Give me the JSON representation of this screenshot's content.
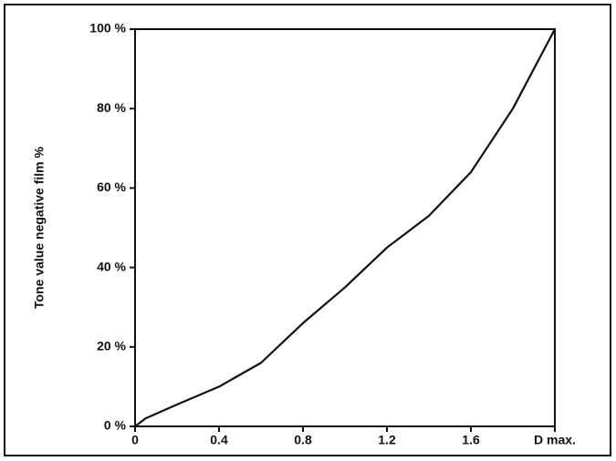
{
  "chart_data": {
    "type": "line",
    "y_label": "Tone value negative film %",
    "x": [
      0,
      0.05,
      0.2,
      0.4,
      0.6,
      0.8,
      1.0,
      1.2,
      1.4,
      1.6,
      1.8,
      2.0
    ],
    "series": [
      {
        "color": "#111111",
        "values": [
          0,
          2,
          5.5,
          10,
          16,
          26,
          35,
          45,
          53,
          64,
          80,
          100
        ]
      }
    ],
    "xlim": [
      0,
      2.0
    ],
    "xticks": [
      0,
      0.4,
      0.8,
      1.2,
      1.6,
      {
        "value": 2.0,
        "label": "D max."
      }
    ],
    "ylim": [
      0,
      100
    ],
    "yticks": [
      {
        "value": 0,
        "label": "0 %"
      },
      {
        "value": 20,
        "label": "20 %"
      },
      {
        "value": 40,
        "label": "40 %"
      },
      {
        "value": 60,
        "label": "60 %"
      },
      {
        "value": 80,
        "label": "80 %"
      },
      {
        "value": 100,
        "label": "100 %"
      }
    ]
  }
}
